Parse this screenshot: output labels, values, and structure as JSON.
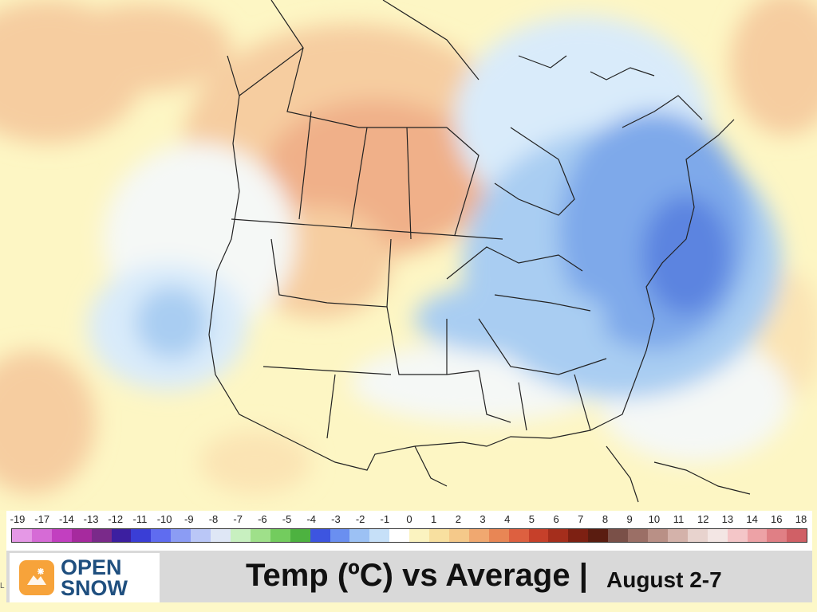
{
  "map": {
    "projection": "polar stereographic",
    "region": "North America",
    "colors": {
      "warm_strong": "#f0b089",
      "warm_mid": "#f6cda0",
      "warm_light": "#fbe4b4",
      "neutral_yellow": "#fdf6c4",
      "neutral_white": "#f5f8f6",
      "cool_light": "#d9ebfa",
      "cool_mid": "#a9cdf2",
      "cool_strong": "#7ea9ea",
      "cool_deep": "#5c84e0",
      "borders": "#222222"
    }
  },
  "scale": {
    "ticks": [
      "-19",
      "-17",
      "-14",
      "-13",
      "-12",
      "-11",
      "-10",
      "-9",
      "-8",
      "-7",
      "-6",
      "-5",
      "-4",
      "-3",
      "-2",
      "-1",
      "0",
      "1",
      "2",
      "3",
      "4",
      "5",
      "6",
      "7",
      "8",
      "9",
      "10",
      "11",
      "12",
      "13",
      "14",
      "16",
      "18"
    ],
    "colors": [
      "#e598e6",
      "#d66bd6",
      "#c23fc0",
      "#a62a9e",
      "#7a2a8a",
      "#3c1fa0",
      "#3a3ed6",
      "#5f6cf0",
      "#8b9cf4",
      "#bac7f7",
      "#dfe7f6",
      "#c8f0c0",
      "#9fe08a",
      "#73cc5e",
      "#4db240",
      "#3d55e0",
      "#6a8ff0",
      "#9cc1f4",
      "#c6e0f8",
      "#ffffff",
      "#fbf3c0",
      "#f8e0a0",
      "#f5c98a",
      "#f0a870",
      "#e88655",
      "#dd6040",
      "#c6402a",
      "#a52e1c",
      "#7d2012",
      "#5a1c10",
      "#7a5048",
      "#9b6f66",
      "#b99086",
      "#d4b2aa",
      "#e8d3ce",
      "#f3e6e4",
      "#f4c6c8",
      "#eda2a6",
      "#e07f85",
      "#d06066"
    ]
  },
  "logo": {
    "line1": "OPEN",
    "line2": "SNOW"
  },
  "title": "Temp (ºC) vs Average |",
  "subtitle": "August 2-7",
  "edge_mark": "L"
}
